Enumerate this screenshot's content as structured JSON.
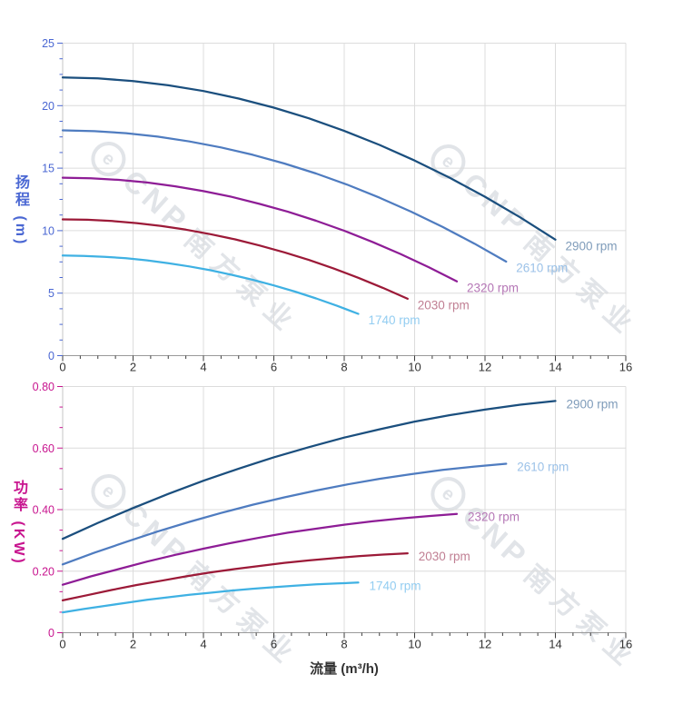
{
  "watermark": {
    "logo_letter": "e",
    "brand": "CNP",
    "brand_cn": "南方泵业",
    "color": "#e1e4e8"
  },
  "style": {
    "background": "#ffffff",
    "grid_color": "#dcdcdc",
    "x_axis_line_color": "#9a9a9a",
    "y_axis_line_color": "#c6c6c6",
    "x_tick_color": "#3c3c3c",
    "x_tick_label_color": "#333333"
  },
  "chart_data": [
    {
      "type": "line",
      "id": "head",
      "title": "",
      "ylabel": "扬程 (m)",
      "axis_color": "#4a67d3",
      "xlim": [
        0,
        16
      ],
      "ylim": [
        0,
        25
      ],
      "x_ticks": [
        0,
        2,
        4,
        6,
        8,
        10,
        12,
        14,
        16
      ],
      "x_minor_step": 0.5,
      "y_ticks": [
        0,
        5,
        10,
        15,
        20,
        25
      ],
      "y_tick_labels": [
        "0",
        "5",
        "10",
        "15",
        "20",
        "25"
      ],
      "y_minor_divisions": 4,
      "grid": true,
      "legend_position": "labels-at-curve-ends",
      "series": [
        {
          "name": "2900 rpm",
          "rpm": 2900,
          "color": "#1b4f7e",
          "label_color": "#7f9cba",
          "x": [
            0,
            1,
            2,
            3,
            4,
            5,
            6,
            7,
            8,
            9,
            10,
            11,
            12,
            13,
            14
          ],
          "y": [
            22.25,
            22.18,
            21.97,
            21.63,
            21.17,
            20.57,
            19.84,
            18.98,
            17.98,
            16.86,
            15.61,
            14.22,
            12.71,
            11.06,
            9.28
          ]
        },
        {
          "name": "2610 rpm",
          "rpm": 2610,
          "color": "#4f7cc0",
          "label_color": "#9cc2e8",
          "x": [
            0,
            0.9,
            1.8,
            2.7,
            3.6,
            4.5,
            5.4,
            6.3,
            7.2,
            8.1,
            9,
            9.9,
            10.8,
            11.7,
            12.6
          ],
          "y": [
            18.02,
            17.96,
            17.8,
            17.52,
            17.14,
            16.66,
            16.07,
            15.37,
            14.57,
            13.66,
            12.64,
            11.52,
            10.29,
            8.96,
            7.52
          ]
        },
        {
          "name": "2320 rpm",
          "rpm": 2320,
          "color": "#8e1d96",
          "label_color": "#b577b6",
          "x": [
            0,
            0.8,
            1.6,
            2.4,
            3.2,
            4,
            4.8,
            5.6,
            6.4,
            7.2,
            8,
            8.8,
            9.6,
            10.4,
            11.2
          ],
          "y": [
            14.24,
            14.19,
            14.06,
            13.85,
            13.55,
            13.16,
            12.7,
            12.14,
            11.51,
            10.79,
            9.99,
            9.1,
            8.13,
            7.08,
            5.94
          ]
        },
        {
          "name": "2030 rpm",
          "rpm": 2030,
          "color": "#9c1a38",
          "label_color": "#c07f93",
          "x": [
            0,
            0.7,
            1.4,
            2.1,
            2.8,
            3.5,
            4.2,
            4.9,
            5.6,
            6.3,
            7,
            7.7,
            8.4,
            9.1,
            9.8
          ],
          "y": [
            10.9,
            10.87,
            10.77,
            10.6,
            10.37,
            10.08,
            9.72,
            9.3,
            8.81,
            8.26,
            7.65,
            6.97,
            6.23,
            5.42,
            4.55
          ]
        },
        {
          "name": "1740 rpm",
          "rpm": 1740,
          "color": "#3fb1e3",
          "label_color": "#93cdf1",
          "x": [
            0,
            0.6,
            1.2,
            1.8,
            2.4,
            3,
            3.6,
            4.2,
            4.8,
            5.4,
            6,
            6.6,
            7.2,
            7.8,
            8.4
          ],
          "y": [
            8.01,
            7.98,
            7.91,
            7.79,
            7.62,
            7.4,
            7.14,
            6.83,
            6.47,
            6.07,
            5.62,
            5.12,
            4.58,
            3.98,
            3.34
          ]
        }
      ]
    },
    {
      "type": "line",
      "id": "power",
      "title": "",
      "ylabel": "功率 (KW)",
      "xlabel": "流量 (m³/h)",
      "axis_color": "#c8158f",
      "xlim": [
        0,
        16
      ],
      "ylim": [
        0,
        0.8
      ],
      "x_ticks": [
        0,
        2,
        4,
        6,
        8,
        10,
        12,
        14,
        16
      ],
      "x_minor_step": 0.5,
      "y_ticks": [
        0,
        0.2,
        0.4,
        0.6,
        0.8
      ],
      "y_tick_labels": [
        "0",
        "0.20",
        "0.40",
        "0.60",
        "0.80"
      ],
      "y_minor_divisions": 3,
      "grid": true,
      "legend_position": "labels-at-curve-ends",
      "series": [
        {
          "name": "2900 rpm",
          "rpm": 2900,
          "color": "#1b4f7e",
          "label_color": "#7f9cba",
          "x": [
            0,
            1,
            2,
            3,
            4,
            5,
            6,
            7,
            8,
            9,
            10,
            11,
            12,
            13,
            14
          ],
          "y": [
            0.305,
            0.357,
            0.405,
            0.451,
            0.494,
            0.533,
            0.57,
            0.603,
            0.634,
            0.661,
            0.686,
            0.707,
            0.725,
            0.741,
            0.753
          ]
        },
        {
          "name": "2610 rpm",
          "rpm": 2610,
          "color": "#4f7cc0",
          "label_color": "#9cc2e8",
          "x": [
            0,
            0.9,
            1.8,
            2.7,
            3.6,
            4.5,
            5.4,
            6.3,
            7.2,
            8.1,
            9,
            9.9,
            10.8,
            11.7,
            12.6
          ],
          "y": [
            0.222,
            0.26,
            0.295,
            0.329,
            0.36,
            0.389,
            0.416,
            0.44,
            0.462,
            0.482,
            0.5,
            0.515,
            0.529,
            0.54,
            0.549
          ]
        },
        {
          "name": "2320 rpm",
          "rpm": 2320,
          "color": "#8e1d96",
          "label_color": "#b577b6",
          "x": [
            0,
            0.8,
            1.6,
            2.4,
            3.2,
            4,
            4.8,
            5.6,
            6.4,
            7.2,
            8,
            8.8,
            9.6,
            10.4,
            11.2
          ],
          "y": [
            0.156,
            0.183,
            0.207,
            0.231,
            0.253,
            0.273,
            0.292,
            0.309,
            0.325,
            0.338,
            0.351,
            0.362,
            0.371,
            0.379,
            0.386
          ]
        },
        {
          "name": "2030 rpm",
          "rpm": 2030,
          "color": "#9c1a38",
          "label_color": "#c07f93",
          "x": [
            0,
            0.7,
            1.4,
            2.1,
            2.8,
            3.5,
            4.2,
            4.9,
            5.6,
            6.3,
            7,
            7.7,
            8.4,
            9.1,
            9.8
          ],
          "y": [
            0.105,
            0.122,
            0.139,
            0.155,
            0.169,
            0.183,
            0.196,
            0.207,
            0.217,
            0.227,
            0.235,
            0.242,
            0.249,
            0.254,
            0.258
          ]
        },
        {
          "name": "1740 rpm",
          "rpm": 1740,
          "color": "#3fb1e3",
          "label_color": "#93cdf1",
          "x": [
            0,
            0.6,
            1.2,
            1.8,
            2.4,
            3,
            3.6,
            4.2,
            4.8,
            5.4,
            6,
            6.6,
            7.2,
            7.8,
            8.4
          ],
          "y": [
            0.066,
            0.077,
            0.087,
            0.097,
            0.107,
            0.115,
            0.123,
            0.13,
            0.137,
            0.143,
            0.148,
            0.153,
            0.157,
            0.16,
            0.163
          ]
        }
      ]
    }
  ]
}
